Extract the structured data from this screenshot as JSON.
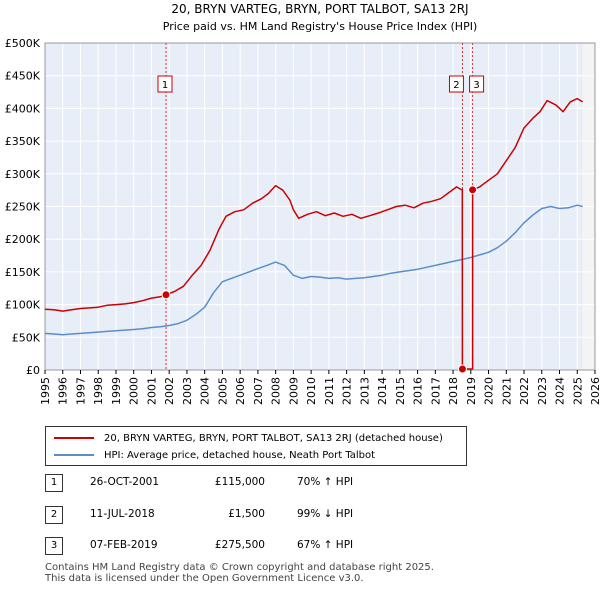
{
  "chart_data": {
    "type": "line",
    "title": "20, BRYN VARTEG, BRYN, PORT TALBOT, SA13 2RJ",
    "subtitle": "Price paid vs. HM Land Registry's House Price Index (HPI)",
    "xlim": [
      1995,
      2026
    ],
    "ylim": [
      0,
      500000
    ],
    "x_ticks": [
      "1995",
      "1996",
      "1997",
      "1998",
      "1999",
      "2000",
      "2001",
      "2002",
      "2003",
      "2004",
      "2005",
      "2006",
      "2007",
      "2008",
      "2009",
      "2010",
      "2011",
      "2012",
      "2013",
      "2014",
      "2015",
      "2016",
      "2017",
      "2018",
      "2019",
      "2020",
      "2021",
      "2022",
      "2023",
      "2024",
      "2025",
      "2026"
    ],
    "y_ticks": [
      {
        "value": 0,
        "label": "£0"
      },
      {
        "value": 50000,
        "label": "£50K"
      },
      {
        "value": 100000,
        "label": "£100K"
      },
      {
        "value": 150000,
        "label": "£150K"
      },
      {
        "value": 200000,
        "label": "£200K"
      },
      {
        "value": 250000,
        "label": "£250K"
      },
      {
        "value": 300000,
        "label": "£300K"
      },
      {
        "value": 350000,
        "label": "£350K"
      },
      {
        "value": 400000,
        "label": "£400K"
      },
      {
        "value": 450000,
        "label": "£450K"
      },
      {
        "value": 500000,
        "label": "£500K"
      }
    ],
    "series": [
      {
        "name": "20, BRYN VARTEG, BRYN, PORT TALBOT, SA13 2RJ (detached house)",
        "color": "#cc0000",
        "points": [
          [
            1995.0,
            93000
          ],
          [
            1995.5,
            92000
          ],
          [
            1996.0,
            90000
          ],
          [
            1996.5,
            92000
          ],
          [
            1997.0,
            94000
          ],
          [
            1997.5,
            95000
          ],
          [
            1998.0,
            96000
          ],
          [
            1998.5,
            99000
          ],
          [
            1999.0,
            100000
          ],
          [
            1999.5,
            101000
          ],
          [
            2000.0,
            103000
          ],
          [
            2000.5,
            106000
          ],
          [
            2001.0,
            110000
          ],
          [
            2001.5,
            112000
          ],
          [
            2001.82,
            115000
          ],
          [
            2002.3,
            120000
          ],
          [
            2002.8,
            128000
          ],
          [
            2003.3,
            145000
          ],
          [
            2003.8,
            160000
          ],
          [
            2004.3,
            183000
          ],
          [
            2004.8,
            215000
          ],
          [
            2005.2,
            235000
          ],
          [
            2005.7,
            242000
          ],
          [
            2006.2,
            245000
          ],
          [
            2006.7,
            255000
          ],
          [
            2007.2,
            262000
          ],
          [
            2007.6,
            270000
          ],
          [
            2008.0,
            282000
          ],
          [
            2008.4,
            275000
          ],
          [
            2008.8,
            260000
          ],
          [
            2009.0,
            245000
          ],
          [
            2009.3,
            232000
          ],
          [
            2009.8,
            238000
          ],
          [
            2010.3,
            242000
          ],
          [
            2010.8,
            236000
          ],
          [
            2011.3,
            240000
          ],
          [
            2011.8,
            235000
          ],
          [
            2012.3,
            238000
          ],
          [
            2012.8,
            232000
          ],
          [
            2013.3,
            236000
          ],
          [
            2013.8,
            240000
          ],
          [
            2014.3,
            245000
          ],
          [
            2014.8,
            250000
          ],
          [
            2015.3,
            252000
          ],
          [
            2015.8,
            248000
          ],
          [
            2016.3,
            255000
          ],
          [
            2016.8,
            258000
          ],
          [
            2017.3,
            262000
          ],
          [
            2017.8,
            272000
          ],
          [
            2018.2,
            280000
          ],
          [
            2018.45,
            276000
          ],
          [
            2018.52,
            276000
          ],
          [
            2018.525,
            1500
          ],
          [
            2019.0,
            1500
          ],
          [
            2019.1,
            1500
          ],
          [
            2019.103,
            275500
          ],
          [
            2019.5,
            280000
          ],
          [
            2020.0,
            290000
          ],
          [
            2020.5,
            300000
          ],
          [
            2021.0,
            320000
          ],
          [
            2021.5,
            340000
          ],
          [
            2022.0,
            370000
          ],
          [
            2022.5,
            385000
          ],
          [
            2022.9,
            395000
          ],
          [
            2023.3,
            412000
          ],
          [
            2023.8,
            405000
          ],
          [
            2024.2,
            395000
          ],
          [
            2024.6,
            410000
          ],
          [
            2025.0,
            415000
          ],
          [
            2025.3,
            410000
          ]
        ]
      },
      {
        "name": "HPI: Average price, detached house, Neath Port Talbot",
        "color": "#5b8ec9",
        "points": [
          [
            1995.0,
            56000
          ],
          [
            1995.5,
            55000
          ],
          [
            1996.0,
            54000
          ],
          [
            1996.5,
            55000
          ],
          [
            1997.0,
            56000
          ],
          [
            1997.5,
            57000
          ],
          [
            1998.0,
            58000
          ],
          [
            1998.5,
            59000
          ],
          [
            1999.0,
            60000
          ],
          [
            1999.5,
            61000
          ],
          [
            2000.0,
            62000
          ],
          [
            2000.5,
            63000
          ],
          [
            2001.0,
            65000
          ],
          [
            2001.5,
            66000
          ],
          [
            2002.0,
            68000
          ],
          [
            2002.5,
            71000
          ],
          [
            2003.0,
            76000
          ],
          [
            2003.5,
            85000
          ],
          [
            2004.0,
            96000
          ],
          [
            2004.5,
            118000
          ],
          [
            2005.0,
            135000
          ],
          [
            2005.5,
            140000
          ],
          [
            2006.0,
            145000
          ],
          [
            2006.5,
            150000
          ],
          [
            2007.0,
            155000
          ],
          [
            2007.5,
            160000
          ],
          [
            2008.0,
            165000
          ],
          [
            2008.5,
            160000
          ],
          [
            2009.0,
            145000
          ],
          [
            2009.5,
            140000
          ],
          [
            2010.0,
            143000
          ],
          [
            2010.5,
            142000
          ],
          [
            2011.0,
            140000
          ],
          [
            2011.5,
            141000
          ],
          [
            2012.0,
            139000
          ],
          [
            2012.5,
            140000
          ],
          [
            2013.0,
            141000
          ],
          [
            2013.5,
            143000
          ],
          [
            2014.0,
            145000
          ],
          [
            2014.5,
            148000
          ],
          [
            2015.0,
            150000
          ],
          [
            2015.5,
            152000
          ],
          [
            2016.0,
            154000
          ],
          [
            2016.5,
            157000
          ],
          [
            2017.0,
            160000
          ],
          [
            2017.5,
            163000
          ],
          [
            2018.0,
            166000
          ],
          [
            2018.5,
            169000
          ],
          [
            2019.0,
            172000
          ],
          [
            2019.5,
            176000
          ],
          [
            2020.0,
            180000
          ],
          [
            2020.5,
            187000
          ],
          [
            2021.0,
            197000
          ],
          [
            2021.5,
            210000
          ],
          [
            2022.0,
            225000
          ],
          [
            2022.5,
            237000
          ],
          [
            2023.0,
            247000
          ],
          [
            2023.5,
            250000
          ],
          [
            2024.0,
            247000
          ],
          [
            2024.5,
            248000
          ],
          [
            2025.0,
            252000
          ],
          [
            2025.3,
            250000
          ]
        ]
      }
    ],
    "sales": [
      {
        "label": "1",
        "x": 2001.82,
        "y": 115000
      },
      {
        "label": "2",
        "x": 2018.53,
        "y": 1500
      },
      {
        "label": "3",
        "x": 2019.1,
        "y": 275500
      }
    ],
    "data_end_year": 2025.3
  },
  "legend": {
    "property_label": "20, BRYN VARTEG, BRYN, PORT TALBOT, SA13 2RJ (detached house)",
    "hpi_label": "HPI: Average price, detached house, Neath Port Talbot"
  },
  "sales_table": [
    {
      "num": "1",
      "date": "26-OCT-2001",
      "price": "£115,000",
      "hpi": "70% ↑ HPI"
    },
    {
      "num": "2",
      "date": "11-JUL-2018",
      "price": "£1,500",
      "hpi": "99% ↓ HPI"
    },
    {
      "num": "3",
      "date": "07-FEB-2019",
      "price": "£275,500",
      "hpi": "67% ↑ HPI"
    }
  ],
  "footer": {
    "line1": "Contains HM Land Registry data © Crown copyright and database right 2025.",
    "line2": "This data is licensed under the Open Government Licence v3.0."
  },
  "colors": {
    "property": "#cc0000",
    "hpi": "#5b8ec9",
    "plot_bg": "#e8eef8",
    "future_bg": "#f4f4f4"
  }
}
